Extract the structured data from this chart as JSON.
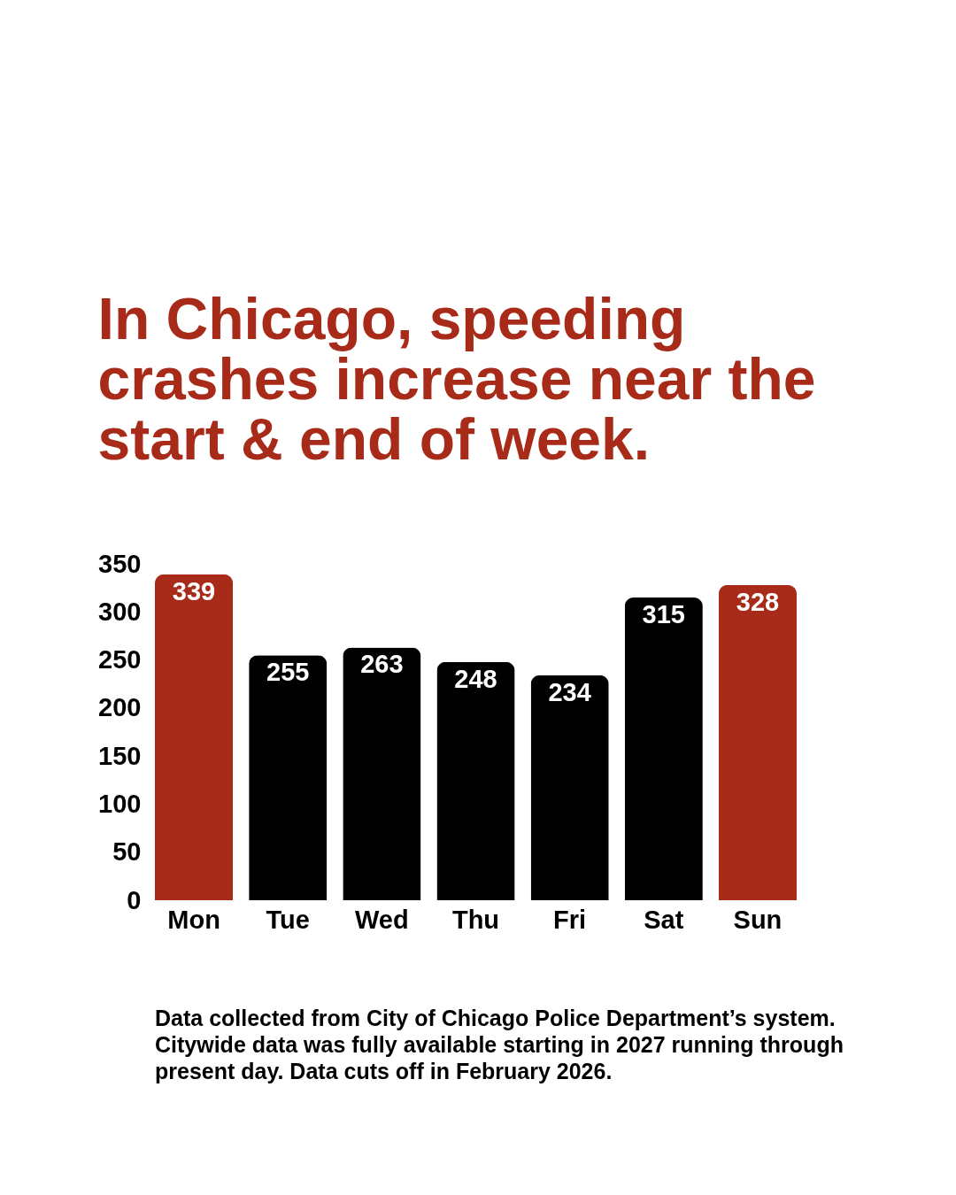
{
  "chart_data": {
    "type": "bar",
    "title": "In Chicago, speeding crashes increase near the start & end of week.",
    "categories": [
      "Mon",
      "Tue",
      "Wed",
      "Thu",
      "Fri",
      "Sat",
      "Sun"
    ],
    "values": [
      339,
      255,
      263,
      248,
      234,
      315,
      328
    ],
    "colors": [
      "#a82a18",
      "#000000",
      "#000000",
      "#000000",
      "#000000",
      "#000000",
      "#a82a18"
    ],
    "ylim": [
      0,
      350
    ],
    "yticks": [
      0,
      50,
      100,
      150,
      200,
      250,
      300,
      350
    ],
    "grid": false,
    "data_labels": true,
    "annotations": [
      "Data collected from City of Chicago Police Department’s system. Citywide data was fully available starting in 2027 running through present day. Data cuts off in February 2026."
    ]
  }
}
